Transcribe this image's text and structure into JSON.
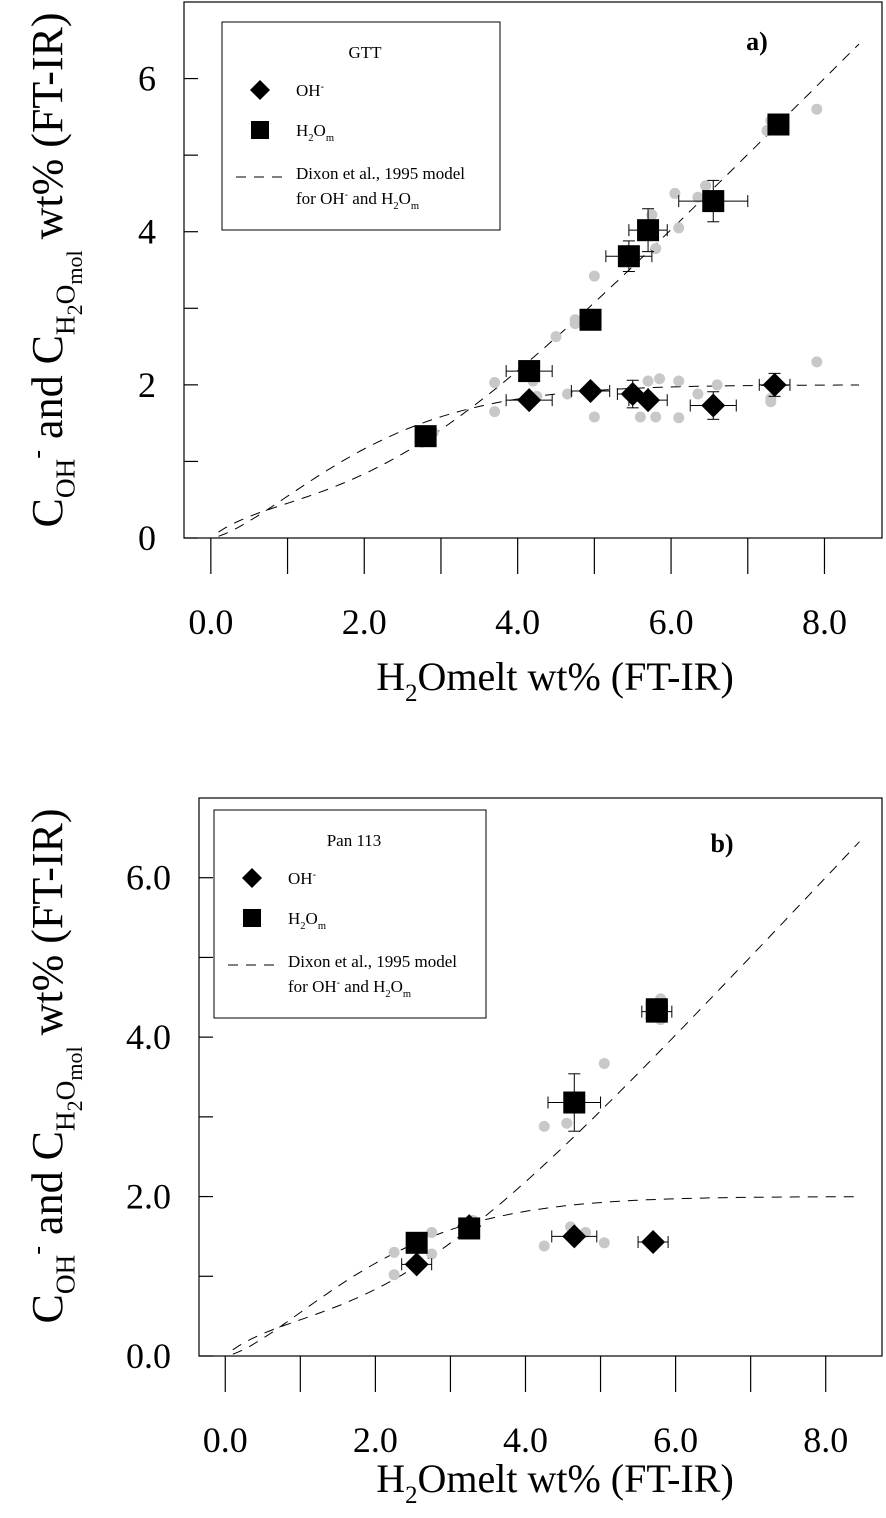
{
  "chart_data": [
    {
      "type": "scatter",
      "panel_label": "a)",
      "legend_title": "GTT",
      "legend": [
        {
          "marker": "diamond",
          "parts": [
            {
              "t": "OH"
            },
            {
              "t": "-",
              "s": "sup"
            }
          ]
        },
        {
          "marker": "square",
          "parts": [
            {
              "t": "H"
            },
            {
              "t": "2",
              "s": "sub"
            },
            {
              "t": "O"
            },
            {
              "t": "m",
              "s": "sub"
            }
          ]
        },
        {
          "marker": "dash",
          "parts": [
            {
              "t": "Dixon et al., 1995 model"
            }
          ]
        },
        {
          "marker": "none",
          "parts": [
            {
              "t": "for OH"
            },
            {
              "t": "-",
              "s": "sup"
            },
            {
              "t": " and H"
            },
            {
              "t": "2",
              "s": "sub"
            },
            {
              "t": "O"
            },
            {
              "t": "m",
              "s": "sub"
            }
          ]
        }
      ],
      "xlabel": [
        {
          "t": "H"
        },
        {
          "t": "2",
          "s": "sub"
        },
        {
          "t": "Omelt wt% (FT-IR)"
        }
      ],
      "ylabel": [
        {
          "t": "C"
        },
        {
          "t": "OH",
          "s": "sub"
        },
        {
          "t": "-",
          "s": "sup"
        },
        {
          "t": " and C"
        },
        {
          "t": "H",
          "s": "sub"
        },
        {
          "t": "2",
          "s": "subsub"
        },
        {
          "t": "O",
          "s": "sub"
        },
        {
          "t": "mol",
          "s": "subsub"
        },
        {
          "t": " wt% (FT-IR)"
        }
      ],
      "xlim": [
        -0.35,
        8.75
      ],
      "ylim": [
        0,
        7.0
      ],
      "xticks": [
        0,
        1,
        2,
        3,
        4,
        5,
        6,
        7,
        8
      ],
      "xtick_labels": [
        {
          "v": 0,
          "label": "0.0"
        },
        {
          "v": 2,
          "label": "2.0"
        },
        {
          "v": 4,
          "label": "4.0"
        },
        {
          "v": 6,
          "label": "6.0"
        },
        {
          "v": 8,
          "label": "8.0"
        }
      ],
      "yticks": [
        0,
        1,
        2,
        3,
        4,
        5,
        6
      ],
      "ytick_labels": [
        {
          "v": 0,
          "label": "0"
        },
        {
          "v": 2,
          "label": "2"
        },
        {
          "v": 4,
          "label": "4"
        },
        {
          "v": 6,
          "label": "6"
        }
      ],
      "oh": [
        {
          "x": 4.15,
          "y": 1.8,
          "xerr": 0.3,
          "yerr": 0
        },
        {
          "x": 4.95,
          "y": 1.92,
          "xerr": 0.25,
          "yerr": 0
        },
        {
          "x": 5.5,
          "y": 1.88,
          "xerr": 0.2,
          "yerr": 0.18
        },
        {
          "x": 5.7,
          "y": 1.8,
          "xerr": 0.25,
          "yerr": 0
        },
        {
          "x": 6.55,
          "y": 1.73,
          "xerr": 0.3,
          "yerr": 0.18
        },
        {
          "x": 7.35,
          "y": 2.0,
          "xerr": 0.2,
          "yerr": 0.15
        }
      ],
      "h2om": [
        {
          "x": 2.8,
          "y": 1.33,
          "xerr": 0,
          "yerr": 0
        },
        {
          "x": 4.15,
          "y": 2.18,
          "xerr": 0.3,
          "yerr": 0
        },
        {
          "x": 4.95,
          "y": 2.85,
          "xerr": 0,
          "yerr": 0
        },
        {
          "x": 5.45,
          "y": 3.68,
          "xerr": 0.3,
          "yerr": 0.2
        },
        {
          "x": 5.7,
          "y": 4.02,
          "xerr": 0.25,
          "yerr": 0.28
        },
        {
          "x": 6.55,
          "y": 4.4,
          "xerr": 0.45,
          "yerr": 0.27
        },
        {
          "x": 7.4,
          "y": 5.4,
          "xerr": 0,
          "yerr": 0
        }
      ],
      "gray": [
        {
          "x": 2.75,
          "y": 1.25
        },
        {
          "x": 2.9,
          "y": 1.38
        },
        {
          "x": 3.7,
          "y": 2.03
        },
        {
          "x": 3.7,
          "y": 1.65
        },
        {
          "x": 4.2,
          "y": 2.05
        },
        {
          "x": 4.25,
          "y": 1.85
        },
        {
          "x": 4.5,
          "y": 2.63
        },
        {
          "x": 4.65,
          "y": 1.88
        },
        {
          "x": 4.75,
          "y": 2.8
        },
        {
          "x": 4.75,
          "y": 2.85
        },
        {
          "x": 5.0,
          "y": 3.42
        },
        {
          "x": 5.0,
          "y": 1.58
        },
        {
          "x": 5.4,
          "y": 3.72
        },
        {
          "x": 5.6,
          "y": 1.58
        },
        {
          "x": 5.65,
          "y": 3.98
        },
        {
          "x": 5.7,
          "y": 2.05
        },
        {
          "x": 5.75,
          "y": 4.22
        },
        {
          "x": 5.8,
          "y": 3.78
        },
        {
          "x": 5.8,
          "y": 1.58
        },
        {
          "x": 5.85,
          "y": 2.08
        },
        {
          "x": 6.05,
          "y": 4.5
        },
        {
          "x": 6.1,
          "y": 4.05
        },
        {
          "x": 6.1,
          "y": 2.05
        },
        {
          "x": 6.1,
          "y": 1.57
        },
        {
          "x": 6.35,
          "y": 4.45
        },
        {
          "x": 6.35,
          "y": 1.88
        },
        {
          "x": 6.45,
          "y": 4.6
        },
        {
          "x": 6.6,
          "y": 2.0
        },
        {
          "x": 7.25,
          "y": 5.32
        },
        {
          "x": 7.3,
          "y": 5.45
        },
        {
          "x": 7.3,
          "y": 1.82
        },
        {
          "x": 7.3,
          "y": 1.78
        },
        {
          "x": 7.35,
          "y": 5.35
        },
        {
          "x": 7.9,
          "y": 5.6
        },
        {
          "x": 7.9,
          "y": 2.3
        }
      ]
    },
    {
      "type": "scatter",
      "panel_label": "b)",
      "legend_title": "Pan 113",
      "legend": [
        {
          "marker": "diamond",
          "parts": [
            {
              "t": "OH"
            },
            {
              "t": "-",
              "s": "sup"
            }
          ]
        },
        {
          "marker": "square",
          "parts": [
            {
              "t": "H"
            },
            {
              "t": "2",
              "s": "sub"
            },
            {
              "t": "O"
            },
            {
              "t": "m",
              "s": "sub"
            }
          ]
        },
        {
          "marker": "dash",
          "parts": [
            {
              "t": "Dixon et al., 1995 model"
            }
          ]
        },
        {
          "marker": "none",
          "parts": [
            {
              "t": "for OH"
            },
            {
              "t": "-",
              "s": "sup"
            },
            {
              "t": " and H"
            },
            {
              "t": "2",
              "s": "sub"
            },
            {
              "t": "O"
            },
            {
              "t": "m",
              "s": "sub"
            }
          ]
        }
      ],
      "xlabel": [
        {
          "t": "H"
        },
        {
          "t": "2",
          "s": "sub"
        },
        {
          "t": "Omelt wt% (FT-IR)"
        }
      ],
      "ylabel": [
        {
          "t": "C"
        },
        {
          "t": "OH",
          "s": "sub"
        },
        {
          "t": "-",
          "s": "sup"
        },
        {
          "t": " and C"
        },
        {
          "t": "H",
          "s": "sub"
        },
        {
          "t": "2",
          "s": "subsub"
        },
        {
          "t": "O",
          "s": "sub"
        },
        {
          "t": "mol",
          "s": "subsub"
        },
        {
          "t": " wt% (FT-IR)"
        }
      ],
      "xlim": [
        -0.35,
        8.75
      ],
      "ylim": [
        0,
        7.0
      ],
      "xticks": [
        0,
        1,
        2,
        3,
        4,
        5,
        6,
        7,
        8
      ],
      "xtick_labels": [
        {
          "v": 0,
          "label": "0.0"
        },
        {
          "v": 2,
          "label": "2.0"
        },
        {
          "v": 4,
          "label": "4.0"
        },
        {
          "v": 6,
          "label": "6.0"
        },
        {
          "v": 8,
          "label": "8.0"
        }
      ],
      "yticks": [
        0,
        1,
        2,
        3,
        4,
        5,
        6
      ],
      "ytick_labels": [
        {
          "v": 0,
          "label": "0.0"
        },
        {
          "v": 2,
          "label": "2.0"
        },
        {
          "v": 4,
          "label": "4.0"
        },
        {
          "v": 6,
          "label": "6.0"
        }
      ],
      "oh": [
        {
          "x": 2.55,
          "y": 1.15,
          "xerr": 0.2,
          "yerr": 0
        },
        {
          "x": 3.25,
          "y": 1.63,
          "xerr": 0,
          "yerr": 0
        },
        {
          "x": 4.65,
          "y": 1.5,
          "xerr": 0.3,
          "yerr": 0
        },
        {
          "x": 5.7,
          "y": 1.43,
          "xerr": 0.2,
          "yerr": 0
        }
      ],
      "h2om": [
        {
          "x": 2.55,
          "y": 1.42,
          "xerr": 0,
          "yerr": 0
        },
        {
          "x": 3.25,
          "y": 1.6,
          "xerr": 0,
          "yerr": 0
        },
        {
          "x": 4.65,
          "y": 3.18,
          "xerr": 0.35,
          "yerr": 0.36
        },
        {
          "x": 5.75,
          "y": 4.32,
          "xerr": 0.2,
          "yerr": 0
        },
        {
          "x": 5.75,
          "y": 4.35,
          "xerr": 0,
          "yerr": 0
        }
      ],
      "gray": [
        {
          "x": 2.25,
          "y": 1.3
        },
        {
          "x": 2.25,
          "y": 1.02
        },
        {
          "x": 2.75,
          "y": 1.55
        },
        {
          "x": 2.75,
          "y": 1.28
        },
        {
          "x": 3.3,
          "y": 1.7
        },
        {
          "x": 4.25,
          "y": 2.88
        },
        {
          "x": 4.25,
          "y": 1.38
        },
        {
          "x": 4.55,
          "y": 2.92
        },
        {
          "x": 4.6,
          "y": 1.62
        },
        {
          "x": 4.8,
          "y": 1.55
        },
        {
          "x": 5.05,
          "y": 3.67
        },
        {
          "x": 5.05,
          "y": 1.42
        },
        {
          "x": 5.8,
          "y": 4.48
        },
        {
          "x": 5.8,
          "y": 4.22
        }
      ]
    }
  ]
}
